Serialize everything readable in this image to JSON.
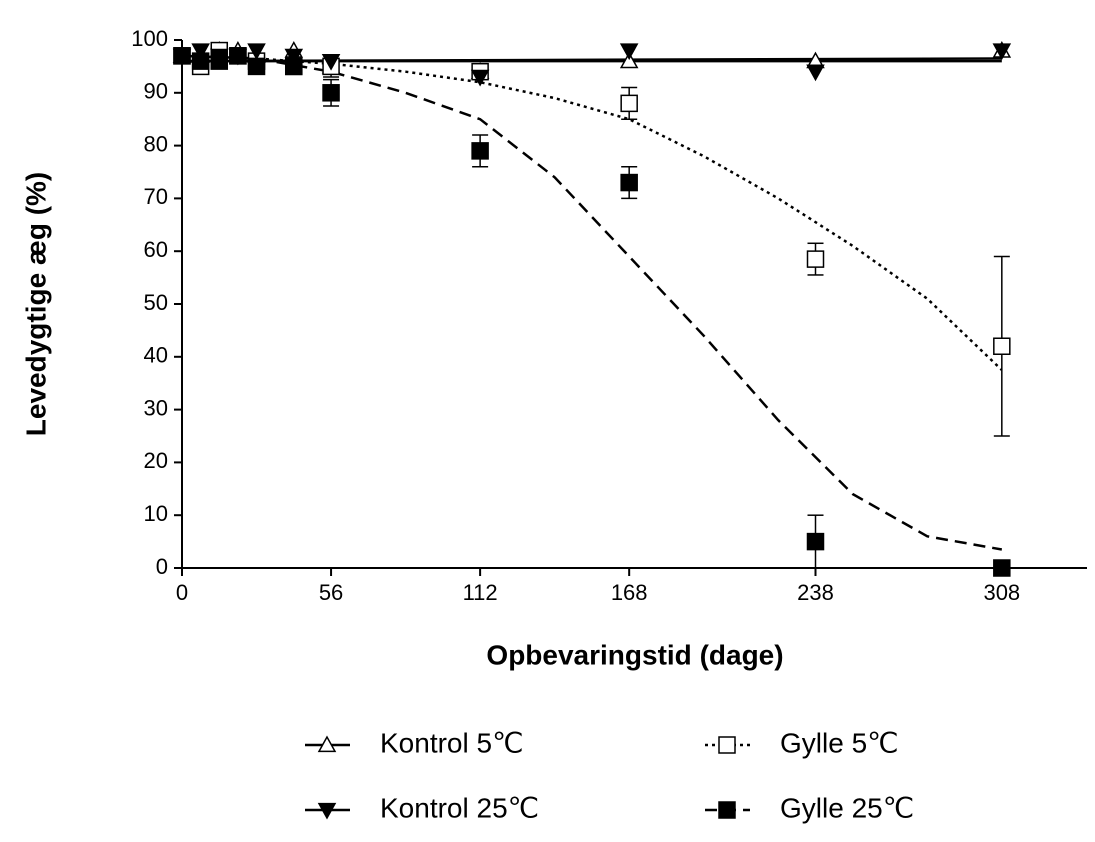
{
  "chart_data": {
    "type": "scatter",
    "xlabel": "Opbevaringstid (dage)",
    "ylabel": "Levedygtige æg (%)",
    "xlim": [
      0,
      340
    ],
    "xticks": [
      0,
      56,
      112,
      168,
      238,
      308
    ],
    "ylim": [
      0,
      100
    ],
    "yticks": [
      0,
      10,
      20,
      30,
      40,
      50,
      60,
      70,
      80,
      90,
      100
    ],
    "x": [
      0,
      7,
      14,
      21,
      28,
      42,
      56,
      112,
      168,
      238,
      308
    ],
    "series": [
      {
        "name": "Kontrol 5℃",
        "color": "#000000",
        "marker": "triangle-up",
        "filled": false,
        "line_style": "solid",
        "values": [
          97,
          97,
          98,
          98,
          97,
          98,
          95,
          94,
          96,
          96,
          98
        ],
        "errors": [
          null,
          null,
          null,
          null,
          null,
          null,
          2,
          null,
          null,
          null,
          null
        ],
        "fit_x": [
          0,
          308
        ],
        "fit_values": [
          96,
          96.5
        ]
      },
      {
        "name": "Gylle 5℃",
        "color": "#000000",
        "marker": "square",
        "filled": false,
        "line_style": "dotted",
        "values": [
          97,
          95,
          98,
          97,
          96,
          95,
          95,
          94,
          88,
          58.5,
          42
        ],
        "errors": [
          null,
          null,
          null,
          null,
          null,
          null,
          null,
          null,
          3,
          3,
          17
        ],
        "fit_x": [
          0,
          28,
          56,
          84,
          112,
          140,
          168,
          196,
          224,
          252,
          280,
          308
        ],
        "fit_values": [
          97,
          96.5,
          95.5,
          94,
          92,
          89,
          85,
          78,
          70,
          61,
          51,
          37.5
        ]
      },
      {
        "name": "Kontrol 25℃",
        "color": "#000000",
        "marker": "triangle-down",
        "filled": true,
        "line_style": "solid",
        "values": [
          97,
          98,
          97,
          97,
          98,
          97,
          96,
          93,
          98,
          94,
          98
        ],
        "errors": [
          null,
          null,
          null,
          null,
          null,
          null,
          null,
          null,
          null,
          null,
          null
        ],
        "fit_x": [
          0,
          308
        ],
        "fit_values": [
          96,
          96
        ]
      },
      {
        "name": "Gylle 25℃",
        "color": "#000000",
        "marker": "square",
        "filled": true,
        "line_style": "dashed",
        "values": [
          97,
          96,
          96,
          97,
          95,
          95,
          90,
          79,
          73,
          5,
          0
        ],
        "errors": [
          null,
          null,
          null,
          null,
          null,
          null,
          2.5,
          3,
          3,
          5,
          null
        ],
        "fit_x": [
          0,
          28,
          56,
          84,
          112,
          140,
          168,
          196,
          224,
          252,
          280,
          308
        ],
        "fit_values": [
          97,
          96.5,
          94,
          90,
          85,
          74,
          59,
          44,
          28,
          14,
          6,
          3.5
        ]
      }
    ]
  }
}
